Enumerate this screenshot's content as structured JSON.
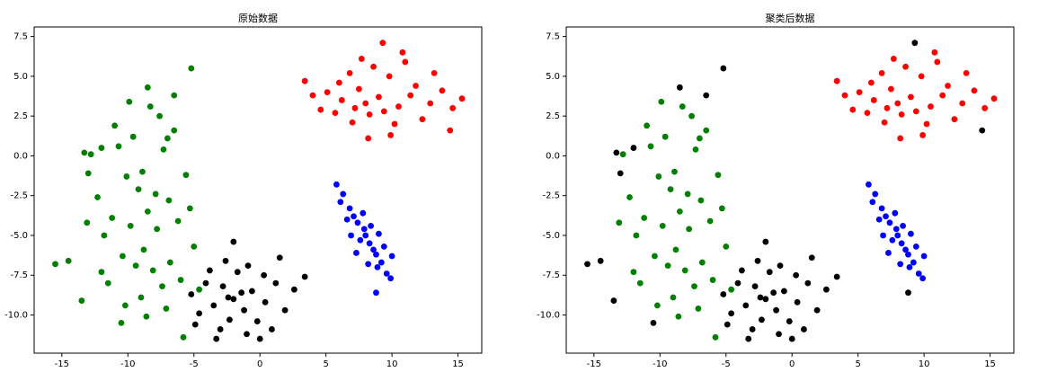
{
  "chart_data": [
    {
      "type": "scatter",
      "title": "原始数据",
      "xlim": [
        -17.1,
        16.8
      ],
      "ylim": [
        -12.4,
        8.1
      ],
      "xticks": [
        -15,
        -10,
        -5,
        0,
        5,
        10,
        15
      ],
      "yticks": [
        {
          "value": -10,
          "label": "-10.0"
        },
        -7.5,
        {
          "value": -5,
          "label": "-5.0"
        },
        -2.5,
        {
          "value": 0,
          "label": "0.0"
        },
        2.5,
        {
          "value": 5,
          "label": "5.0"
        },
        7.5
      ],
      "series": [
        {
          "color": "#008000",
          "x": [
            -8.5,
            -9.2,
            -7.8,
            -10.1,
            -6.9,
            -8.8,
            -11.2,
            -7.3,
            -9.6,
            -8.1,
            -6.2,
            -12.3,
            -10.4,
            -7.6,
            -9.0,
            -5.6,
            -11.8,
            -8.3,
            -6.8,
            -10.7,
            -13.1,
            -7.1,
            -9.8,
            -5.3,
            -8.9,
            -11.0,
            -7.9,
            -12.0,
            -6.5,
            -9.4,
            -10.2,
            -5.0,
            -8.6,
            -7.4,
            -11.5,
            -6.0,
            -12.8,
            -9.9,
            -4.6,
            -5.8,
            -7.0,
            -15.5,
            -14.5,
            -13.5,
            -10.5,
            -8.5,
            -6.5,
            -5.2,
            -13.0,
            -12.0,
            -13.3
          ],
          "values": [
            -3.5,
            -2.1,
            -4.6,
            -1.3,
            -2.8,
            -5.9,
            -3.9,
            0.4,
            1.2,
            -7.2,
            -4.1,
            -2.6,
            -6.3,
            2.5,
            -8.9,
            -1.2,
            -5.0,
            3.1,
            -6.7,
            0.6,
            -4.2,
            -9.6,
            -4.4,
            -3.3,
            -1.0,
            1.9,
            -2.4,
            -7.3,
            1.6,
            -6.9,
            -9.4,
            -5.7,
            -10.1,
            -8.2,
            -8.0,
            -7.8,
            0.1,
            3.4,
            -8.4,
            -11.4,
            1.1,
            -6.8,
            -6.6,
            -9.1,
            -10.5,
            4.3,
            3.8,
            5.5,
            -1.1,
            0.5,
            0.2
          ]
        },
        {
          "color": "#ff0000",
          "x": [
            9.0,
            7.5,
            10.5,
            6.2,
            11.8,
            8.3,
            9.8,
            5.1,
            12.9,
            7.0,
            10.2,
            8.6,
            4.0,
            13.8,
            6.8,
            11.0,
            9.4,
            3.4,
            14.6,
            8.0,
            12.3,
            5.7,
            10.8,
            7.7,
            15.3,
            6.0,
            9.9,
            8.2,
            11.4,
            4.6,
            13.2,
            7.2,
            9.3,
            14.4
          ],
          "values": [
            3.7,
            4.2,
            3.1,
            3.5,
            4.4,
            2.6,
            5.0,
            4.0,
            3.3,
            2.1,
            2.0,
            5.6,
            3.8,
            4.1,
            5.2,
            5.9,
            2.8,
            4.7,
            3.0,
            3.3,
            2.3,
            2.7,
            6.5,
            6.1,
            3.6,
            4.6,
            1.3,
            1.1,
            3.8,
            2.9,
            5.2,
            3.0,
            7.1,
            1.6
          ]
        },
        {
          "color": "#0000ff",
          "x": [
            8.0,
            7.4,
            8.6,
            6.8,
            9.2,
            7.9,
            8.3,
            6.3,
            9.6,
            7.1,
            8.8,
            5.8,
            9.9,
            7.6,
            8.4,
            6.6,
            9.4,
            7.3,
            8.9,
            6.1,
            7.8,
            9.0,
            6.9,
            8.2,
            10.0,
            8.8
          ],
          "values": [
            -5.0,
            -4.2,
            -5.9,
            -3.3,
            -6.7,
            -4.6,
            -5.5,
            -2.4,
            -7.4,
            -3.8,
            -6.2,
            -1.8,
            -7.7,
            -5.3,
            -4.4,
            -4.0,
            -5.7,
            -6.1,
            -7.0,
            -2.9,
            -3.6,
            -4.9,
            -5.0,
            -6.8,
            -6.3,
            -8.6
          ]
        },
        {
          "color": "#000000",
          "x": [
            -2.0,
            -2.8,
            -1.2,
            -3.5,
            -0.6,
            -2.3,
            -4.1,
            0.4,
            -1.7,
            -3.0,
            -0.2,
            -4.6,
            1.2,
            -2.6,
            -1.0,
            1.9,
            -3.8,
            0.9,
            -2.0,
            -4.9,
            2.6,
            -1.4,
            -0.9,
            3.4,
            -3.3,
            0.3,
            -2.4,
            1.5,
            -5.2,
            0.0
          ],
          "values": [
            -9.0,
            -8.2,
            -9.7,
            -9.4,
            -8.5,
            -10.3,
            -8.0,
            -9.2,
            -7.3,
            -10.9,
            -10.4,
            -9.9,
            -8.0,
            -6.6,
            -11.2,
            -9.7,
            -7.2,
            -10.9,
            -5.4,
            -10.6,
            -8.4,
            -8.6,
            -6.9,
            -7.6,
            -11.5,
            -7.5,
            -8.9,
            -6.4,
            -8.7,
            -11.5
          ]
        }
      ]
    },
    {
      "type": "scatter",
      "title": "聚类后数据",
      "xlim": [
        -17.1,
        16.8
      ],
      "ylim": [
        -12.4,
        8.1
      ],
      "xticks": [
        -15,
        -10,
        -5,
        0,
        5,
        10,
        15
      ],
      "yticks": [
        {
          "value": -10,
          "label": "-10.0"
        },
        -7.5,
        {
          "value": -5,
          "label": "-5.0"
        },
        -2.5,
        {
          "value": 0,
          "label": "0.0"
        },
        2.5,
        {
          "value": 5,
          "label": "5.0"
        },
        7.5
      ],
      "series": [
        {
          "color": "#008000",
          "x": [
            -8.5,
            -9.2,
            -7.8,
            -10.1,
            -6.9,
            -8.8,
            -11.2,
            -7.3,
            -9.6,
            -8.1,
            -6.2,
            -12.3,
            -10.4,
            -7.6,
            -9.0,
            -5.6,
            -11.8,
            -8.3,
            -6.8,
            -10.7,
            -13.1,
            -7.1,
            -9.8,
            -5.3,
            -8.9,
            -11.0,
            -7.9,
            -12.0,
            -6.5,
            -9.4,
            -10.2,
            -5.0,
            -8.6,
            -7.4,
            -11.5,
            -6.0,
            -12.8,
            -9.9,
            -4.6,
            -5.8,
            -7.0
          ],
          "values": [
            -3.5,
            -2.1,
            -4.6,
            -1.3,
            -2.8,
            -5.9,
            -3.9,
            0.4,
            1.2,
            -7.2,
            -4.1,
            -2.6,
            -6.3,
            2.5,
            -8.9,
            -1.2,
            -5.0,
            3.1,
            -6.7,
            0.6,
            -4.2,
            -9.6,
            -4.4,
            -3.3,
            -1.0,
            1.9,
            -2.4,
            -7.3,
            1.6,
            -6.9,
            -9.4,
            -5.7,
            -10.1,
            -8.2,
            -8.0,
            -7.8,
            0.1,
            3.4,
            -8.4,
            -11.4,
            1.1
          ]
        },
        {
          "color": "#ff0000",
          "x": [
            9.0,
            7.5,
            10.5,
            6.2,
            11.8,
            8.3,
            9.8,
            5.1,
            12.9,
            7.0,
            10.2,
            8.6,
            4.0,
            13.8,
            6.8,
            11.0,
            9.4,
            3.4,
            14.6,
            8.0,
            12.3,
            5.7,
            10.8,
            7.7,
            15.3,
            6.0,
            9.9,
            8.2,
            11.4,
            4.6,
            13.2,
            7.2
          ],
          "values": [
            3.7,
            4.2,
            3.1,
            3.5,
            4.4,
            2.6,
            5.0,
            4.0,
            3.3,
            2.1,
            2.0,
            5.6,
            3.8,
            4.1,
            5.2,
            5.9,
            2.8,
            4.7,
            3.0,
            3.3,
            2.3,
            2.7,
            6.5,
            6.1,
            3.6,
            4.6,
            1.3,
            1.1,
            3.8,
            2.9,
            5.2,
            3.0
          ]
        },
        {
          "color": "#0000ff",
          "x": [
            8.0,
            7.4,
            8.6,
            6.8,
            9.2,
            7.9,
            8.3,
            6.3,
            9.6,
            7.1,
            8.8,
            5.8,
            9.9,
            7.6,
            8.4,
            6.6,
            9.4,
            7.3,
            8.9,
            6.1,
            7.8,
            9.0,
            6.9,
            8.2,
            10.0
          ],
          "values": [
            -5.0,
            -4.2,
            -5.9,
            -3.3,
            -6.7,
            -4.6,
            -5.5,
            -2.4,
            -7.4,
            -3.8,
            -6.2,
            -1.8,
            -7.7,
            -5.3,
            -4.4,
            -4.0,
            -5.7,
            -6.1,
            -7.0,
            -2.9,
            -3.6,
            -4.9,
            -5.0,
            -6.8,
            -6.3
          ]
        },
        {
          "color": "#000000",
          "x": [
            -2.0,
            -2.8,
            -1.2,
            -3.5,
            -0.6,
            -2.3,
            -4.1,
            0.4,
            -1.7,
            -3.0,
            -0.2,
            -4.6,
            1.2,
            -2.6,
            -1.0,
            1.9,
            -3.8,
            0.9,
            -2.0,
            -4.9,
            2.6,
            -1.4,
            -0.9,
            3.4,
            -3.3,
            0.3,
            -2.4,
            1.5,
            -5.2,
            0.0,
            -15.5,
            -14.5,
            -13.5,
            -10.5,
            -8.5,
            -6.5,
            -5.2,
            -13.0,
            -12.0,
            -13.3,
            9.3,
            14.4,
            8.8
          ],
          "values": [
            -9.0,
            -8.2,
            -9.7,
            -9.4,
            -8.5,
            -10.3,
            -8.0,
            -9.2,
            -7.3,
            -10.9,
            -10.4,
            -9.9,
            -8.0,
            -6.6,
            -11.2,
            -9.7,
            -7.2,
            -10.9,
            -5.4,
            -10.6,
            -8.4,
            -8.6,
            -6.9,
            -7.6,
            -11.5,
            -7.5,
            -8.9,
            -6.4,
            -8.7,
            -11.5,
            -6.8,
            -6.6,
            -9.1,
            -10.5,
            4.3,
            3.8,
            5.5,
            -1.1,
            0.5,
            0.2,
            7.1,
            1.6,
            -8.6
          ]
        }
      ]
    }
  ]
}
